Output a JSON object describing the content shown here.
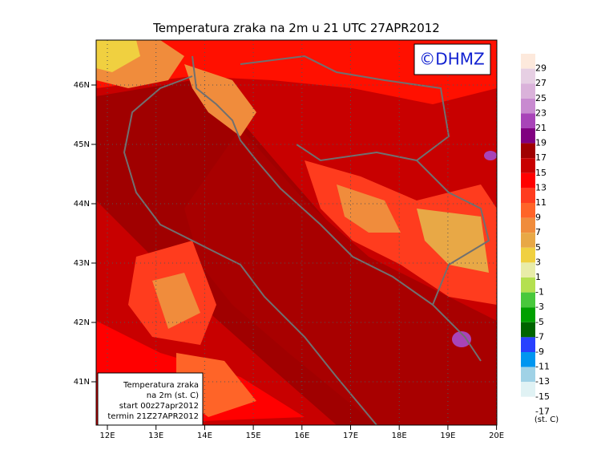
{
  "header": {
    "title": "Temperatura zraka na 2m u 21 UTC 27APR2012",
    "watermark": "©DHMZ"
  },
  "axes": {
    "lat_labels": [
      "46N",
      "45N",
      "44N",
      "43N",
      "42N",
      "41N"
    ],
    "lon_labels": [
      "12E",
      "13E",
      "14E",
      "15E",
      "16E",
      "17E",
      "18E",
      "19E",
      "20E"
    ]
  },
  "info_box": {
    "lines": [
      "Temperatura zraka",
      "na 2m (st. C)",
      "start 00z27apr2012",
      "termin 21Z27APR2012"
    ]
  },
  "colorbar": {
    "labels": [
      "29",
      "27",
      "25",
      "23",
      "21",
      "19",
      "17",
      "15",
      "13",
      "11",
      "9",
      "7",
      "5",
      "3",
      "1",
      "-1",
      "-3",
      "-5",
      "-7",
      "-9",
      "-11",
      "-13",
      "-15",
      "-17"
    ],
    "colors": [
      "#fde9dc",
      "#e6cfe3",
      "#dab2da",
      "#c88ad0",
      "#a844b8",
      "#800080",
      "#a00000",
      "#c80000",
      "#ff0000",
      "#ff3c1e",
      "#ff6428",
      "#f08c3c",
      "#e8a846",
      "#f0d040",
      "#e8eca8",
      "#b4e050",
      "#48c83c",
      "#00a000",
      "#006400",
      "#2840ff",
      "#0096f0",
      "#a0d2e6",
      "#e0f2f4",
      "#ffffff"
    ],
    "units": "(st. C)"
  }
}
